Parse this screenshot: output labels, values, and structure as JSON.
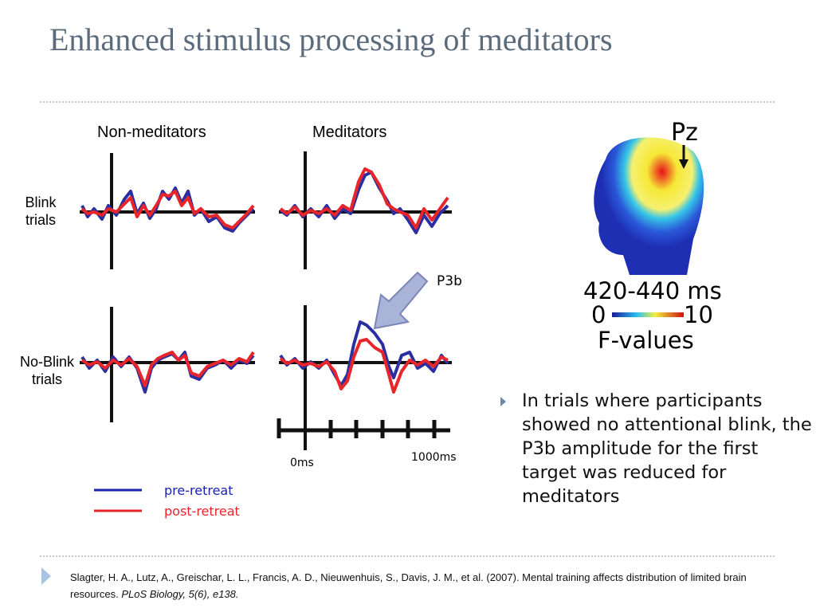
{
  "title": "Enhanced stimulus processing of meditators",
  "figure": {
    "column_labels": [
      "Non-meditators",
      "Meditators"
    ],
    "row_labels": [
      "Blink trials",
      "No-Blink trials"
    ],
    "annotation": "P3b",
    "time_labels": [
      "0ms",
      "1000ms"
    ],
    "legend": [
      "pre-retreat",
      "post-retreat"
    ]
  },
  "topography": {
    "electrode": "Pz",
    "time_window": "420-440 ms",
    "scale_min": "0",
    "scale_max": "10",
    "scale_label": "F-values"
  },
  "bullet": "In trials where participants showed no attentional blink, the P3b amplitude for the first target was reduced for meditators",
  "citation": {
    "text": "Slagter, H. A., Lutz, A., Greischar, L. L., Francis, A. D., Nieuwenhuis, S., Davis, J. M., et al. (2007). Mental training affects distribution of limited brain resources. ",
    "journal": "PLoS Biology, 5(6), e138."
  }
}
